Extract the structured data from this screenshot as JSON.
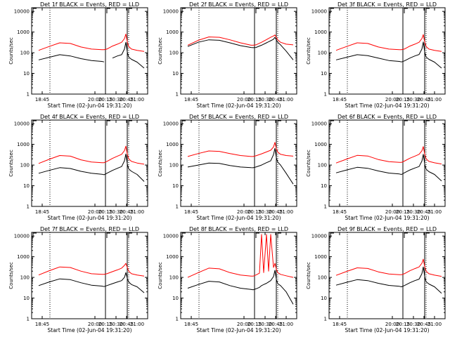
{
  "colors": {
    "events": "#000000",
    "lld": "#ff0000",
    "axes": "#000000",
    "background": "#ffffff"
  },
  "chart_data": [
    {
      "type": "line",
      "title": "Det 1f BLACK = Events, RED = LLD",
      "xlabel": "Start Time (02-Jun-04 19:31:20)",
      "ylabel": "Counts/sec",
      "y_scale": "log",
      "ylim": [
        1,
        15000
      ],
      "xlim": [
        "18:30",
        "21:15"
      ],
      "x_ticks": [
        "18:45",
        "20:00",
        "20:15",
        "20:30",
        "20:45",
        "21:00"
      ],
      "y_ticks": [
        "1",
        "10",
        "100",
        "1000",
        "10000"
      ],
      "markers": {
        "dotted_lines": [
          "18:56",
          "20:48"
        ],
        "solid_lines": [
          "20:15",
          "20:46"
        ],
        "corner_marks": [
          "18:31",
          "20:16",
          "20:47"
        ]
      },
      "x": [
        "18:40",
        "18:55",
        "19:10",
        "19:25",
        "19:40",
        "19:55",
        "20:10",
        "20:13",
        "20:17",
        "20:25",
        "20:32",
        "20:38",
        "20:42",
        "20:44",
        "20:46",
        "20:48",
        "20:52",
        "21:00",
        "21:10"
      ],
      "series": [
        {
          "name": "BLACK = Events",
          "values": [
            45,
            60,
            80,
            70,
            52,
            42,
            38,
            36,
            null,
            55,
            70,
            80,
            150,
            320,
            110,
            62,
            48,
            35,
            18
          ]
        },
        {
          "name": "RED = LLD",
          "values": [
            130,
            200,
            300,
            280,
            190,
            150,
            140,
            140,
            150,
            210,
            260,
            320,
            480,
            800,
            340,
            200,
            150,
            130,
            115
          ]
        }
      ]
    },
    {
      "type": "line",
      "title": "Det 2f BLACK = Events, RED = LLD",
      "xlabel": "Start Time (02-Jun-04 19:31:20)",
      "ylabel": "Counts/sec",
      "y_scale": "log",
      "ylim": [
        1,
        15000
      ],
      "xlim": [
        "18:30",
        "21:15"
      ],
      "x_ticks": [
        "18:45",
        "20:00",
        "20:15",
        "20:30",
        "20:45",
        "21:00"
      ],
      "y_ticks": [
        "1",
        "10",
        "100",
        "1000",
        "10000"
      ],
      "markers": {
        "dotted_lines": [
          "18:56",
          "20:48"
        ],
        "solid_lines": [
          "20:15",
          "20:46"
        ],
        "corner_marks": [
          "18:31",
          "20:16",
          "20:47"
        ]
      },
      "x": [
        "18:40",
        "18:55",
        "19:10",
        "19:25",
        "19:40",
        "19:55",
        "20:10",
        "20:13",
        "20:17",
        "20:25",
        "20:32",
        "20:38",
        "20:42",
        "20:44",
        "20:46",
        "20:48",
        "20:52",
        "21:00",
        "21:10"
      ],
      "series": [
        {
          "name": "BLACK = Events",
          "values": [
            200,
            320,
            420,
            400,
            300,
            220,
            180,
            175,
            180,
            230,
            300,
            380,
            450,
            560,
            420,
            320,
            240,
            120,
            45
          ]
        },
        {
          "name": "RED = LLD",
          "values": [
            230,
            400,
            580,
            560,
            420,
            300,
            230,
            230,
            240,
            320,
            430,
            560,
            650,
            720,
            560,
            420,
            320,
            260,
            240
          ]
        }
      ]
    },
    {
      "type": "line",
      "title": "Det 3f BLACK = Events, RED = LLD",
      "xlabel": "Start Time (02-Jun-04 19:31:20)",
      "ylabel": "Counts/sec",
      "y_scale": "log",
      "ylim": [
        1,
        15000
      ],
      "xlim": [
        "18:30",
        "21:15"
      ],
      "x_ticks": [
        "18:45",
        "20:00",
        "20:15",
        "20:30",
        "20:45",
        "21:00"
      ],
      "y_ticks": [
        "1",
        "10",
        "100",
        "1000",
        "10000"
      ],
      "markers": {
        "dotted_lines": [
          "18:56",
          "20:48"
        ],
        "solid_lines": [
          "20:15",
          "20:46"
        ],
        "corner_marks": [
          "18:31",
          "20:16",
          "20:47"
        ]
      },
      "x": [
        "18:40",
        "18:55",
        "19:10",
        "19:25",
        "19:40",
        "19:55",
        "20:10",
        "20:13",
        "20:17",
        "20:25",
        "20:32",
        "20:38",
        "20:42",
        "20:44",
        "20:46",
        "20:48",
        "20:52",
        "21:00",
        "21:10"
      ],
      "series": [
        {
          "name": "BLACK = Events",
          "values": [
            45,
            60,
            80,
            72,
            55,
            42,
            38,
            36,
            40,
            55,
            70,
            82,
            150,
            330,
            110,
            62,
            48,
            35,
            18
          ]
        },
        {
          "name": "RED = LLD",
          "values": [
            130,
            200,
            300,
            280,
            190,
            150,
            140,
            140,
            150,
            210,
            260,
            320,
            480,
            750,
            330,
            200,
            150,
            130,
            115
          ]
        }
      ]
    },
    {
      "type": "line",
      "title": "Det 4f BLACK = Events, RED = LLD",
      "xlabel": "Start Time (02-Jun-04 19:31:20)",
      "ylabel": "Counts/sec",
      "y_scale": "log",
      "ylim": [
        1,
        15000
      ],
      "xlim": [
        "18:30",
        "21:15"
      ],
      "x_ticks": [
        "18:45",
        "20:00",
        "20:15",
        "20:30",
        "20:45",
        "21:00"
      ],
      "y_ticks": [
        "1",
        "10",
        "100",
        "1000",
        "10000"
      ],
      "markers": {
        "dotted_lines": [
          "18:56",
          "20:48"
        ],
        "solid_lines": [
          "20:15",
          "20:46"
        ],
        "corner_marks": [
          "18:31",
          "20:16",
          "20:47"
        ]
      },
      "x": [
        "18:40",
        "18:55",
        "19:10",
        "19:25",
        "19:40",
        "19:55",
        "20:10",
        "20:13",
        "20:17",
        "20:25",
        "20:32",
        "20:38",
        "20:42",
        "20:44",
        "20:46",
        "20:48",
        "20:52",
        "21:00",
        "21:10"
      ],
      "series": [
        {
          "name": "BLACK = Events",
          "values": [
            40,
            55,
            75,
            68,
            50,
            40,
            36,
            34,
            40,
            55,
            70,
            85,
            160,
            340,
            115,
            65,
            50,
            35,
            16
          ]
        },
        {
          "name": "RED = LLD",
          "values": [
            120,
            190,
            290,
            270,
            180,
            140,
            130,
            130,
            150,
            210,
            270,
            330,
            500,
            820,
            350,
            200,
            150,
            125,
            110
          ]
        }
      ]
    },
    {
      "type": "line",
      "title": "Det 5f BLACK = Events, RED = LLD",
      "xlabel": "Start Time (02-Jun-04 19:31:20)",
      "ylabel": "Counts/sec",
      "y_scale": "log",
      "ylim": [
        1,
        15000
      ],
      "xlim": [
        "18:30",
        "21:15"
      ],
      "x_ticks": [
        "18:45",
        "20:00",
        "20:15",
        "20:30",
        "20:45",
        "21:00"
      ],
      "y_ticks": [
        "1",
        "10",
        "100",
        "1000",
        "10000"
      ],
      "markers": {
        "dotted_lines": [
          "18:56",
          "20:48"
        ],
        "solid_lines": [
          "20:15",
          "20:46"
        ],
        "corner_marks": [
          "18:31",
          "20:16",
          "20:47"
        ]
      },
      "x": [
        "18:40",
        "18:55",
        "19:10",
        "19:25",
        "19:40",
        "19:55",
        "20:10",
        "20:13",
        "20:17",
        "20:25",
        "20:32",
        "20:38",
        "20:42",
        "20:44",
        "20:46",
        "20:48",
        "20:52",
        "21:00",
        "21:10"
      ],
      "series": [
        {
          "name": "BLACK = Events",
          "values": [
            80,
            100,
            125,
            120,
            95,
            80,
            75,
            74,
            80,
            100,
            130,
            160,
            320,
            650,
            230,
            140,
            100,
            40,
            12
          ]
        },
        {
          "name": "RED = LLD",
          "values": [
            260,
            360,
            480,
            460,
            360,
            290,
            260,
            260,
            280,
            350,
            430,
            520,
            750,
            1250,
            620,
            420,
            330,
            290,
            270
          ]
        }
      ]
    },
    {
      "type": "line",
      "title": "Det 6f BLACK = Events, RED = LLD",
      "xlabel": "Start Time (02-Jun-04 19:31:20)",
      "ylabel": "Counts/sec",
      "y_scale": "log",
      "ylim": [
        1,
        15000
      ],
      "xlim": [
        "18:30",
        "21:15"
      ],
      "x_ticks": [
        "18:45",
        "20:00",
        "20:15",
        "20:30",
        "20:45",
        "21:00"
      ],
      "y_ticks": [
        "1",
        "10",
        "100",
        "1000",
        "10000"
      ],
      "markers": {
        "dotted_lines": [
          "18:56",
          "20:48"
        ],
        "solid_lines": [
          "20:15",
          "20:46"
        ],
        "corner_marks": [
          "18:31",
          "20:16",
          "20:47"
        ]
      },
      "x": [
        "18:40",
        "18:55",
        "19:10",
        "19:25",
        "19:40",
        "19:55",
        "20:10",
        "20:13",
        "20:17",
        "20:25",
        "20:32",
        "20:38",
        "20:42",
        "20:44",
        "20:46",
        "20:48",
        "20:52",
        "21:00",
        "21:10"
      ],
      "series": [
        {
          "name": "BLACK = Events",
          "values": [
            42,
            58,
            78,
            70,
            52,
            41,
            37,
            35,
            42,
            58,
            72,
            85,
            155,
            330,
            112,
            63,
            48,
            35,
            17
          ]
        },
        {
          "name": "RED = LLD",
          "values": [
            125,
            195,
            295,
            275,
            185,
            145,
            135,
            135,
            155,
            215,
            270,
            330,
            490,
            780,
            340,
            200,
            150,
            128,
            112
          ]
        }
      ]
    },
    {
      "type": "line",
      "title": "Det 7f BLACK = Events, RED = LLD",
      "xlabel": "Start Time (02-Jun-04 19:31:20)",
      "ylabel": "Counts/sec",
      "y_scale": "log",
      "ylim": [
        1,
        15000
      ],
      "xlim": [
        "18:30",
        "21:15"
      ],
      "x_ticks": [
        "18:45",
        "20:00",
        "20:15",
        "20:30",
        "20:45",
        "21:00"
      ],
      "y_ticks": [
        "1",
        "10",
        "100",
        "1000",
        "10000"
      ],
      "markers": {
        "dotted_lines": [
          "18:56",
          "20:48"
        ],
        "solid_lines": [
          "20:15",
          "20:46"
        ],
        "corner_marks": [
          "18:31",
          "20:16",
          "20:47"
        ]
      },
      "x": [
        "18:40",
        "18:55",
        "19:10",
        "19:25",
        "19:40",
        "19:55",
        "20:10",
        "20:13",
        "20:17",
        "20:25",
        "20:32",
        "20:38",
        "20:42",
        "20:44",
        "20:46",
        "20:48",
        "20:52",
        "21:00",
        "21:10"
      ],
      "series": [
        {
          "name": "BLACK = Events",
          "values": [
            40,
            60,
            85,
            78,
            55,
            42,
            38,
            36,
            40,
            50,
            60,
            70,
            100,
            170,
            90,
            60,
            45,
            35,
            18
          ]
        },
        {
          "name": "RED = LLD",
          "values": [
            130,
            210,
            320,
            300,
            200,
            150,
            140,
            140,
            150,
            190,
            230,
            280,
            380,
            480,
            300,
            200,
            150,
            130,
            115
          ]
        }
      ]
    },
    {
      "type": "line",
      "title": "Det 8f BLACK = Events, RED = LLD",
      "xlabel": "Start Time (02-Jun-04 19:31:20)",
      "ylabel": "Counts/sec",
      "y_scale": "log",
      "ylim": [
        1,
        15000
      ],
      "xlim": [
        "18:30",
        "21:15"
      ],
      "x_ticks": [
        "18:45",
        "20:00",
        "20:15",
        "20:30",
        "20:45",
        "21:00"
      ],
      "y_ticks": [
        "1",
        "10",
        "100",
        "1000",
        "10000"
      ],
      "markers": {
        "dotted_lines": [
          "18:56",
          "20:48"
        ],
        "solid_lines": [
          "20:15",
          "20:46"
        ],
        "corner_marks": [
          "18:31",
          "20:16",
          "20:47"
        ]
      },
      "x": [
        "18:40",
        "18:55",
        "19:10",
        "19:25",
        "19:40",
        "19:55",
        "20:10",
        "20:13",
        "20:17",
        "20:22",
        "20:25",
        "20:28",
        "20:32",
        "20:35",
        "20:38",
        "20:42",
        "20:44",
        "20:46",
        "20:48",
        "20:52",
        "21:00",
        "21:10"
      ],
      "series": [
        {
          "name": "BLACK = Events",
          "values": [
            30,
            45,
            65,
            60,
            40,
            30,
            26,
            25,
            28,
            33,
            40,
            45,
            52,
            60,
            70,
            110,
            220,
            80,
            50,
            40,
            20,
            5
          ]
        },
        {
          "name": "RED = LLD",
          "values": [
            100,
            170,
            280,
            260,
            170,
            130,
            115,
            115,
            130,
            160,
            12000,
            170,
            12000,
            200,
            12000,
            300,
            480,
            250,
            170,
            140,
            120,
            100
          ]
        }
      ]
    },
    {
      "type": "line",
      "title": "Det 9f BLACK = Events, RED = LLD",
      "xlabel": "Start Time (02-Jun-04 19:31:20)",
      "ylabel": "Counts/sec",
      "y_scale": "log",
      "ylim": [
        1,
        15000
      ],
      "xlim": [
        "18:30",
        "21:15"
      ],
      "x_ticks": [
        "18:45",
        "20:00",
        "20:15",
        "20:30",
        "20:45",
        "21:00"
      ],
      "y_ticks": [
        "1",
        "10",
        "100",
        "1000",
        "10000"
      ],
      "markers": {
        "dotted_lines": [
          "18:56",
          "20:48"
        ],
        "solid_lines": [
          "20:15",
          "20:46"
        ],
        "corner_marks": [
          "18:31",
          "20:16",
          "20:47"
        ]
      },
      "x": [
        "18:40",
        "18:55",
        "19:10",
        "19:25",
        "19:40",
        "19:55",
        "20:10",
        "20:13",
        "20:17",
        "20:25",
        "20:32",
        "20:38",
        "20:42",
        "20:44",
        "20:46",
        "20:48",
        "20:52",
        "21:00",
        "21:10"
      ],
      "series": [
        {
          "name": "BLACK = Events",
          "values": [
            42,
            58,
            78,
            70,
            52,
            41,
            37,
            35,
            40,
            55,
            70,
            82,
            150,
            320,
            110,
            62,
            48,
            35,
            17
          ]
        },
        {
          "name": "RED = LLD",
          "values": [
            125,
            195,
            290,
            270,
            185,
            145,
            135,
            135,
            150,
            210,
            265,
            320,
            480,
            760,
            330,
            200,
            150,
            128,
            112
          ]
        }
      ]
    }
  ]
}
